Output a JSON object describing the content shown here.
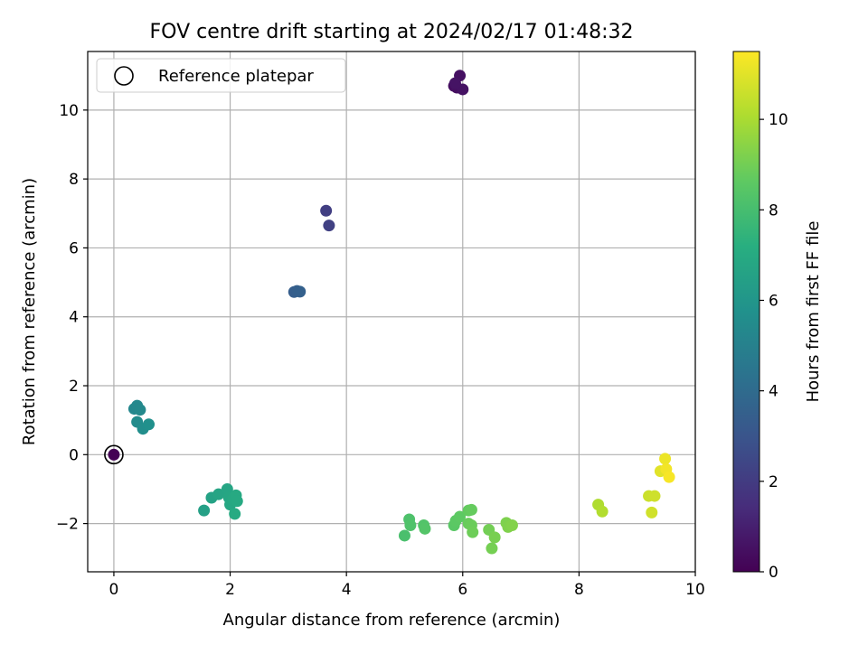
{
  "chart_data": {
    "type": "scatter",
    "title": "FOV centre drift starting at 2024/02/17 01:48:32",
    "xlabel": "Angular distance from reference (arcmin)",
    "ylabel": "Rotation from reference (arcmin)",
    "xlim": [
      -0.45,
      10.0
    ],
    "ylim": [
      -3.4,
      11.7
    ],
    "xticks": [
      0,
      2,
      4,
      6,
      8,
      10
    ],
    "yticks": [
      -2,
      0,
      2,
      4,
      6,
      8,
      10
    ],
    "xtick_labels": [
      "0",
      "2",
      "4",
      "6",
      "8",
      "10"
    ],
    "ytick_labels": [
      "−2",
      "0",
      "2",
      "4",
      "6",
      "8",
      "10"
    ],
    "grid": true,
    "legend": {
      "position": "upper-left",
      "entries": [
        "Reference platepar"
      ]
    },
    "colorbar": {
      "label": "Hours from first FF file",
      "colormap": "viridis",
      "range": [
        0,
        11.5
      ],
      "ticks": [
        0,
        2,
        4,
        6,
        8,
        10
      ],
      "tick_labels": [
        "0",
        "2",
        "4",
        "6",
        "8",
        "10"
      ]
    },
    "reference_point": {
      "x": 0,
      "y": 0
    },
    "points": [
      {
        "x": 0.0,
        "y": 0.0,
        "c": 0.0
      },
      {
        "x": 5.85,
        "y": 10.7,
        "c": 0.4
      },
      {
        "x": 5.9,
        "y": 10.65,
        "c": 0.45
      },
      {
        "x": 5.95,
        "y": 11.0,
        "c": 0.5
      },
      {
        "x": 6.0,
        "y": 10.6,
        "c": 0.55
      },
      {
        "x": 5.87,
        "y": 10.78,
        "c": 0.6
      },
      {
        "x": 3.65,
        "y": 7.08,
        "c": 2.1
      },
      {
        "x": 3.7,
        "y": 6.65,
        "c": 2.2
      },
      {
        "x": 3.1,
        "y": 4.72,
        "c": 3.4
      },
      {
        "x": 3.15,
        "y": 4.75,
        "c": 3.45
      },
      {
        "x": 3.2,
        "y": 4.73,
        "c": 3.5
      },
      {
        "x": 0.35,
        "y": 1.33,
        "c": 5.3
      },
      {
        "x": 0.4,
        "y": 1.42,
        "c": 5.35
      },
      {
        "x": 0.45,
        "y": 1.3,
        "c": 5.4
      },
      {
        "x": 0.4,
        "y": 0.95,
        "c": 5.5
      },
      {
        "x": 0.5,
        "y": 0.75,
        "c": 5.6
      },
      {
        "x": 0.6,
        "y": 0.88,
        "c": 5.7
      },
      {
        "x": 1.55,
        "y": -1.62,
        "c": 6.5
      },
      {
        "x": 1.68,
        "y": -1.25,
        "c": 6.6
      },
      {
        "x": 1.8,
        "y": -1.15,
        "c": 6.7
      },
      {
        "x": 1.95,
        "y": -1.0,
        "c": 6.75
      },
      {
        "x": 1.98,
        "y": -1.25,
        "c": 6.8
      },
      {
        "x": 2.0,
        "y": -1.45,
        "c": 6.85
      },
      {
        "x": 2.05,
        "y": -1.3,
        "c": 6.9
      },
      {
        "x": 2.1,
        "y": -1.18,
        "c": 6.95
      },
      {
        "x": 2.12,
        "y": -1.35,
        "c": 6.95
      },
      {
        "x": 2.08,
        "y": -1.72,
        "c": 7.0
      },
      {
        "x": 5.0,
        "y": -2.35,
        "c": 8.1
      },
      {
        "x": 5.08,
        "y": -1.88,
        "c": 8.2
      },
      {
        "x": 5.1,
        "y": -2.05,
        "c": 8.25
      },
      {
        "x": 5.33,
        "y": -2.05,
        "c": 8.3
      },
      {
        "x": 5.35,
        "y": -2.15,
        "c": 8.35
      },
      {
        "x": 5.85,
        "y": -2.05,
        "c": 8.5
      },
      {
        "x": 5.88,
        "y": -1.92,
        "c": 8.55
      },
      {
        "x": 5.95,
        "y": -1.8,
        "c": 8.6
      },
      {
        "x": 6.1,
        "y": -1.62,
        "c": 8.7
      },
      {
        "x": 6.15,
        "y": -1.6,
        "c": 8.75
      },
      {
        "x": 6.1,
        "y": -2.0,
        "c": 8.8
      },
      {
        "x": 6.15,
        "y": -2.05,
        "c": 8.85
      },
      {
        "x": 6.17,
        "y": -2.25,
        "c": 8.9
      },
      {
        "x": 6.45,
        "y": -2.18,
        "c": 9.0
      },
      {
        "x": 6.5,
        "y": -2.72,
        "c": 9.05
      },
      {
        "x": 6.55,
        "y": -2.4,
        "c": 9.1
      },
      {
        "x": 6.75,
        "y": -1.98,
        "c": 9.2
      },
      {
        "x": 6.78,
        "y": -2.1,
        "c": 9.25
      },
      {
        "x": 6.85,
        "y": -2.05,
        "c": 9.3
      },
      {
        "x": 8.33,
        "y": -1.45,
        "c": 10.1
      },
      {
        "x": 8.4,
        "y": -1.65,
        "c": 10.15
      },
      {
        "x": 9.2,
        "y": -1.2,
        "c": 10.6
      },
      {
        "x": 9.3,
        "y": -1.2,
        "c": 10.65
      },
      {
        "x": 9.25,
        "y": -1.68,
        "c": 10.7
      },
      {
        "x": 9.4,
        "y": -0.48,
        "c": 11.0
      },
      {
        "x": 9.48,
        "y": -0.12,
        "c": 11.2
      },
      {
        "x": 9.5,
        "y": -0.42,
        "c": 11.3
      },
      {
        "x": 9.55,
        "y": -0.65,
        "c": 11.4
      }
    ]
  }
}
